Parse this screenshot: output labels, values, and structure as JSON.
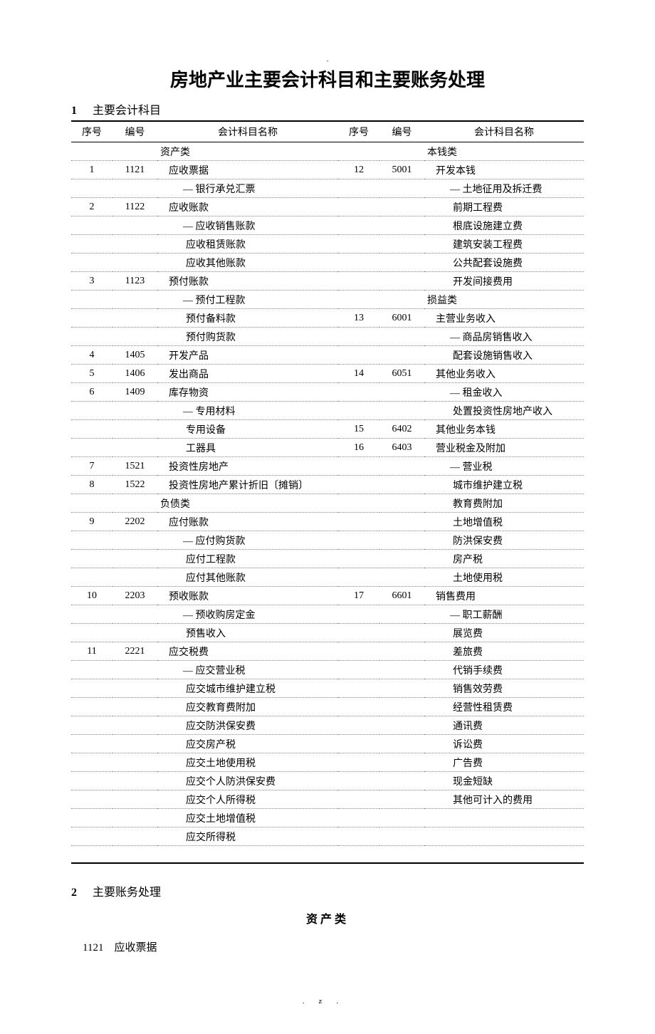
{
  "title": "房地产业主要会计科目和主要账务处理",
  "section1": {
    "num": "1",
    "label": "主要会计科目"
  },
  "headers": {
    "seq": "序号",
    "code": "编号",
    "name": "会计科目名称",
    "seq2": "序号",
    "code2": "编号",
    "name2": "会计科目名称"
  },
  "rows": [
    {
      "l": {
        "name": "资产类",
        "indent": 0
      },
      "r": {
        "name": "本钱类",
        "indent": 0
      }
    },
    {
      "l": {
        "seq": "1",
        "code": "1121",
        "name": "应收票据",
        "indent": 1
      },
      "r": {
        "seq": "12",
        "code": "5001",
        "name": "开发本钱",
        "indent": 1
      }
    },
    {
      "l": {
        "name": "— 银行承兑汇票",
        "indent": 2
      },
      "r": {
        "name": "— 土地征用及拆迁费",
        "indent": 2
      }
    },
    {
      "l": {
        "seq": "2",
        "code": "1122",
        "name": "应收账款",
        "indent": 1
      },
      "r": {
        "name": "前期工程费",
        "indent": 3
      }
    },
    {
      "l": {
        "name": "— 应收销售账款",
        "indent": 2
      },
      "r": {
        "name": "根底设施建立费",
        "indent": 3
      }
    },
    {
      "l": {
        "name": "应收租赁账款",
        "indent": 3
      },
      "r": {
        "name": "建筑安装工程费",
        "indent": 3
      }
    },
    {
      "l": {
        "name": "应收其他账款",
        "indent": 3
      },
      "r": {
        "name": "公共配套设施费",
        "indent": 3
      }
    },
    {
      "l": {
        "seq": "3",
        "code": "1123",
        "name": "预付账款",
        "indent": 1
      },
      "r": {
        "name": "开发间接费用",
        "indent": 3
      }
    },
    {
      "l": {
        "name": "— 预付工程款",
        "indent": 2
      },
      "r": {
        "name": "损益类",
        "indent": 0
      }
    },
    {
      "l": {
        "name": "预付备料款",
        "indent": 3
      },
      "r": {
        "seq": "13",
        "code": "6001",
        "name": "主营业务收入",
        "indent": 1
      }
    },
    {
      "l": {
        "name": "预付购货款",
        "indent": 3
      },
      "r": {
        "name": "— 商品房销售收入",
        "indent": 2
      }
    },
    {
      "l": {
        "seq": "4",
        "code": "1405",
        "name": "开发产品",
        "indent": 1
      },
      "r": {
        "name": "配套设施销售收入",
        "indent": 3
      }
    },
    {
      "l": {
        "seq": "5",
        "code": "1406",
        "name": "发出商品",
        "indent": 1
      },
      "r": {
        "seq": "14",
        "code": "6051",
        "name": "其他业务收入",
        "indent": 1
      }
    },
    {
      "l": {
        "seq": "6",
        "code": "1409",
        "name": "库存物资",
        "indent": 1
      },
      "r": {
        "name": "— 租金收入",
        "indent": 2
      }
    },
    {
      "l": {
        "name": "— 专用材料",
        "indent": 2
      },
      "r": {
        "name": "处置投资性房地产收入",
        "indent": 3
      }
    },
    {
      "l": {
        "name": "专用设备",
        "indent": 3
      },
      "r": {
        "seq": "15",
        "code": "6402",
        "name": "其他业务本钱",
        "indent": 1
      }
    },
    {
      "l": {
        "name": "工器具",
        "indent": 3
      },
      "r": {
        "seq": "16",
        "code": "6403",
        "name": "营业税金及附加",
        "indent": 1
      }
    },
    {
      "l": {
        "seq": "7",
        "code": "1521",
        "name": "投资性房地产",
        "indent": 1
      },
      "r": {
        "name": "— 营业税",
        "indent": 2
      }
    },
    {
      "l": {
        "seq": "8",
        "code": "1522",
        "name": "投资性房地产累计折旧〔摊销〕",
        "indent": 1
      },
      "r": {
        "name": "城市维护建立税",
        "indent": 3
      }
    },
    {
      "l": {
        "name": "负债类",
        "indent": 0
      },
      "r": {
        "name": "教育费附加",
        "indent": 3
      }
    },
    {
      "l": {
        "seq": "9",
        "code": "2202",
        "name": "应付账款",
        "indent": 1
      },
      "r": {
        "name": "土地增值税",
        "indent": 3
      }
    },
    {
      "l": {
        "name": "— 应付购货款",
        "indent": 2
      },
      "r": {
        "name": "防洪保安费",
        "indent": 3
      }
    },
    {
      "l": {
        "name": "应付工程款",
        "indent": 3
      },
      "r": {
        "name": "房产税",
        "indent": 3
      }
    },
    {
      "l": {
        "name": "应付其他账款",
        "indent": 3
      },
      "r": {
        "name": "土地使用税",
        "indent": 3
      }
    },
    {
      "l": {
        "seq": "10",
        "code": "2203",
        "name": "预收账款",
        "indent": 1
      },
      "r": {
        "seq": "17",
        "code": "6601",
        "name": "销售费用",
        "indent": 1
      }
    },
    {
      "l": {
        "name": "— 预收购房定金",
        "indent": 2
      },
      "r": {
        "name": "— 职工薪酬",
        "indent": 2
      }
    },
    {
      "l": {
        "name": "预售收入",
        "indent": 3
      },
      "r": {
        "name": "展览费",
        "indent": 3
      }
    },
    {
      "l": {
        "seq": "11",
        "code": "2221",
        "name": "应交税费",
        "indent": 1
      },
      "r": {
        "name": "差旅费",
        "indent": 3
      }
    },
    {
      "l": {
        "name": "— 应交营业税",
        "indent": 2
      },
      "r": {
        "name": "代销手续费",
        "indent": 3
      }
    },
    {
      "l": {
        "name": "应交城市维护建立税",
        "indent": 3
      },
      "r": {
        "name": "销售效劳费",
        "indent": 3
      }
    },
    {
      "l": {
        "name": "应交教育费附加",
        "indent": 3
      },
      "r": {
        "name": "经营性租赁费",
        "indent": 3
      }
    },
    {
      "l": {
        "name": "应交防洪保安费",
        "indent": 3
      },
      "r": {
        "name": "通讯费",
        "indent": 3
      }
    },
    {
      "l": {
        "name": "应交房产税",
        "indent": 3
      },
      "r": {
        "name": "诉讼费",
        "indent": 3
      }
    },
    {
      "l": {
        "name": "应交土地使用税",
        "indent": 3
      },
      "r": {
        "name": "广告费",
        "indent": 3
      }
    },
    {
      "l": {
        "name": "应交个人防洪保安费",
        "indent": 3
      },
      "r": {
        "name": "现金短缺",
        "indent": 3
      }
    },
    {
      "l": {
        "name": "应交个人所得税",
        "indent": 3
      },
      "r": {
        "name": "其他可计入的费用",
        "indent": 3
      }
    },
    {
      "l": {
        "name": "应交土地增值税",
        "indent": 3
      },
      "r": {
        "name": "",
        "indent": 0
      }
    },
    {
      "l": {
        "name": "应交所得税",
        "indent": 3
      },
      "r": {
        "name": "",
        "indent": 0
      }
    },
    {
      "l": {
        "name": "",
        "indent": 0
      },
      "r": {
        "name": "",
        "indent": 0
      }
    }
  ],
  "section2": {
    "num": "2",
    "label": "主要账务处理"
  },
  "category_heading": "资产类",
  "entry": {
    "code": "1121",
    "name": "应收票据"
  },
  "footer": ".z.",
  "top_mark": "-"
}
